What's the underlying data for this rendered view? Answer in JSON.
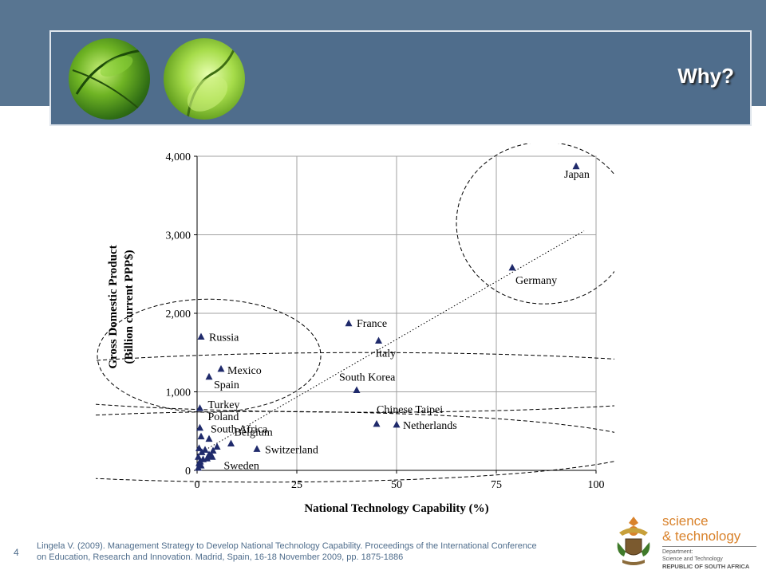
{
  "slide": {
    "title": "Why?",
    "number": "4"
  },
  "citation": "Lingela V. (2009). Management Strategy to Develop National Technology Capability. Proceedings of the International Conference on Education, Research and Innovation. Madrid, Spain, 16-18 November 2009, pp. 1875-1886",
  "logo": {
    "line1": "science",
    "line2": "& technology",
    "dept1": "Department:",
    "dept2": "Science and Technology",
    "country": "REPUBLIC OF SOUTH AFRICA"
  },
  "colors": {
    "header": "#4f6d8c",
    "band": "#587591",
    "marker": "#1f2a6b",
    "logo_orange": "#d9822b"
  },
  "chart_data": {
    "type": "scatter",
    "xlabel": "National Technology Capability (%)",
    "ylabel_line1": "Gross Domestic Product",
    "ylabel_line2": "(Billion current PPP$)",
    "xlim": [
      0,
      100
    ],
    "ylim": [
      0,
      4000
    ],
    "xticks": [
      "0",
      "25",
      "50",
      "75",
      "100"
    ],
    "yticks": [
      "0",
      "1,000",
      "2,000",
      "3,000",
      "4,000"
    ],
    "grid": true,
    "trendline": {
      "x": [
        0,
        97
      ],
      "y": [
        200,
        3050
      ]
    },
    "labeled_points": [
      {
        "label": "Japan",
        "x": 95,
        "y": 3870
      },
      {
        "label": "Germany",
        "x": 79,
        "y": 2580
      },
      {
        "label": "France",
        "x": 38,
        "y": 1870
      },
      {
        "label": "Italy",
        "x": 45.5,
        "y": 1650
      },
      {
        "label": "South Korea",
        "x": 40,
        "y": 1020
      },
      {
        "label": "Chinese Taipei",
        "x": 45,
        "y": 590
      },
      {
        "label": "Netherlands",
        "x": 50,
        "y": 580
      },
      {
        "label": "Russia",
        "x": 1,
        "y": 1700
      },
      {
        "label": "Mexico",
        "x": 6,
        "y": 1290
      },
      {
        "label": "Spain",
        "x": 3,
        "y": 1190
      },
      {
        "label": "Turkey",
        "x": 0.7,
        "y": 790
      },
      {
        "label": "Poland",
        "x": 0.7,
        "y": 540
      },
      {
        "label": "South Africa",
        "x": 3,
        "y": 400
      },
      {
        "label": "Belgium",
        "x": 8.5,
        "y": 340
      },
      {
        "label": "Switzerland",
        "x": 15,
        "y": 270
      },
      {
        "label": "Sweden",
        "x": 3.5,
        "y": 180
      }
    ],
    "other_points": [
      {
        "x": 1,
        "y": 430
      },
      {
        "x": 0.5,
        "y": 280
      },
      {
        "x": 1.2,
        "y": 230
      },
      {
        "x": 2,
        "y": 260
      },
      {
        "x": 3,
        "y": 200
      },
      {
        "x": 4,
        "y": 250
      },
      {
        "x": 5,
        "y": 300
      },
      {
        "x": 0.3,
        "y": 170
      },
      {
        "x": 1.5,
        "y": 140
      },
      {
        "x": 2.5,
        "y": 150
      },
      {
        "x": 0.5,
        "y": 90
      },
      {
        "x": 1,
        "y": 60
      },
      {
        "x": 0.3,
        "y": 30
      },
      {
        "x": 0.8,
        "y": 110
      },
      {
        "x": 3.8,
        "y": 170
      }
    ],
    "clusters": [
      {
        "cx": 87,
        "cy": 3150,
        "rx": 22,
        "ry": 103
      },
      {
        "cx": 3,
        "cy": 1460,
        "rx": 28,
        "ry": 72
      },
      {
        "cx": 17,
        "cy": 300,
        "rx": 96,
        "ry": 45
      },
      {
        "cx": 42.5,
        "cy": 1120,
        "rx": 100,
        "ry": 38
      }
    ]
  }
}
